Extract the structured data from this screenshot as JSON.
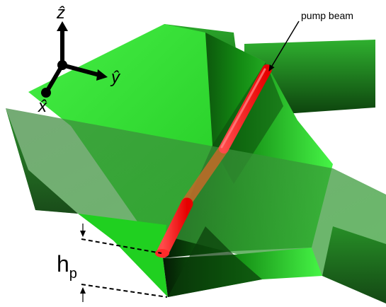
{
  "axes": {
    "z_label": "ẑ",
    "y_label": "ŷ",
    "x_label": "x̂"
  },
  "annotations": {
    "pump_beam_label": "pump beam",
    "height_label_main": "h",
    "height_label_sub": "p"
  },
  "colors": {
    "plane_green": "#2ee02e",
    "plane_dark": "#0f5c0f",
    "beam_red": "#ff1a1a",
    "axis_black": "#000000"
  }
}
